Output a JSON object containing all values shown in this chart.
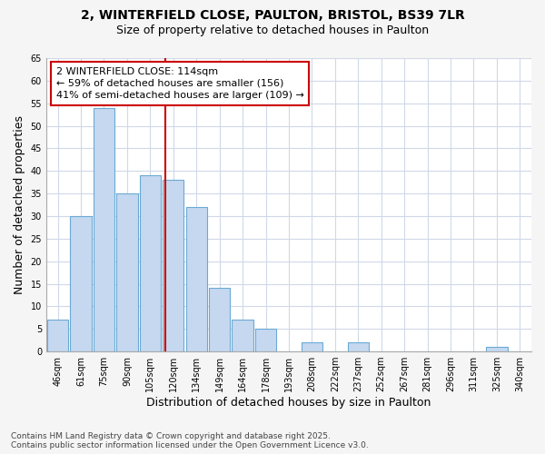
{
  "title_line1": "2, WINTERFIELD CLOSE, PAULTON, BRISTOL, BS39 7LR",
  "title_line2": "Size of property relative to detached houses in Paulton",
  "xlabel": "Distribution of detached houses by size in Paulton",
  "ylabel": "Number of detached properties",
  "bin_labels": [
    "46sqm",
    "61sqm",
    "75sqm",
    "90sqm",
    "105sqm",
    "120sqm",
    "134sqm",
    "149sqm",
    "164sqm",
    "178sqm",
    "193sqm",
    "208sqm",
    "222sqm",
    "237sqm",
    "252sqm",
    "267sqm",
    "281sqm",
    "296sqm",
    "311sqm",
    "325sqm",
    "340sqm"
  ],
  "bin_values": [
    7,
    30,
    54,
    35,
    39,
    38,
    32,
    14,
    7,
    5,
    0,
    2,
    0,
    2,
    0,
    0,
    0,
    0,
    0,
    1,
    0
  ],
  "bar_color": "#c5d8f0",
  "bar_edgecolor": "#6aaad4",
  "property_line_index": 4.67,
  "property_line_color": "#cc0000",
  "annotation_text": "2 WINTERFIELD CLOSE: 114sqm\n← 59% of detached houses are smaller (156)\n41% of semi-detached houses are larger (109) →",
  "annotation_box_facecolor": "#ffffff",
  "annotation_box_edgecolor": "#cc0000",
  "ylim": [
    0,
    65
  ],
  "yticks": [
    0,
    5,
    10,
    15,
    20,
    25,
    30,
    35,
    40,
    45,
    50,
    55,
    60,
    65
  ],
  "figure_background": "#f5f5f5",
  "plot_background": "#ffffff",
  "grid_color": "#d0d8e8",
  "footer_text": "Contains HM Land Registry data © Crown copyright and database right 2025.\nContains public sector information licensed under the Open Government Licence v3.0.",
  "title_fontsize": 10,
  "subtitle_fontsize": 9,
  "axis_label_fontsize": 9,
  "tick_fontsize": 7,
  "annotation_fontsize": 8,
  "footer_fontsize": 6.5
}
